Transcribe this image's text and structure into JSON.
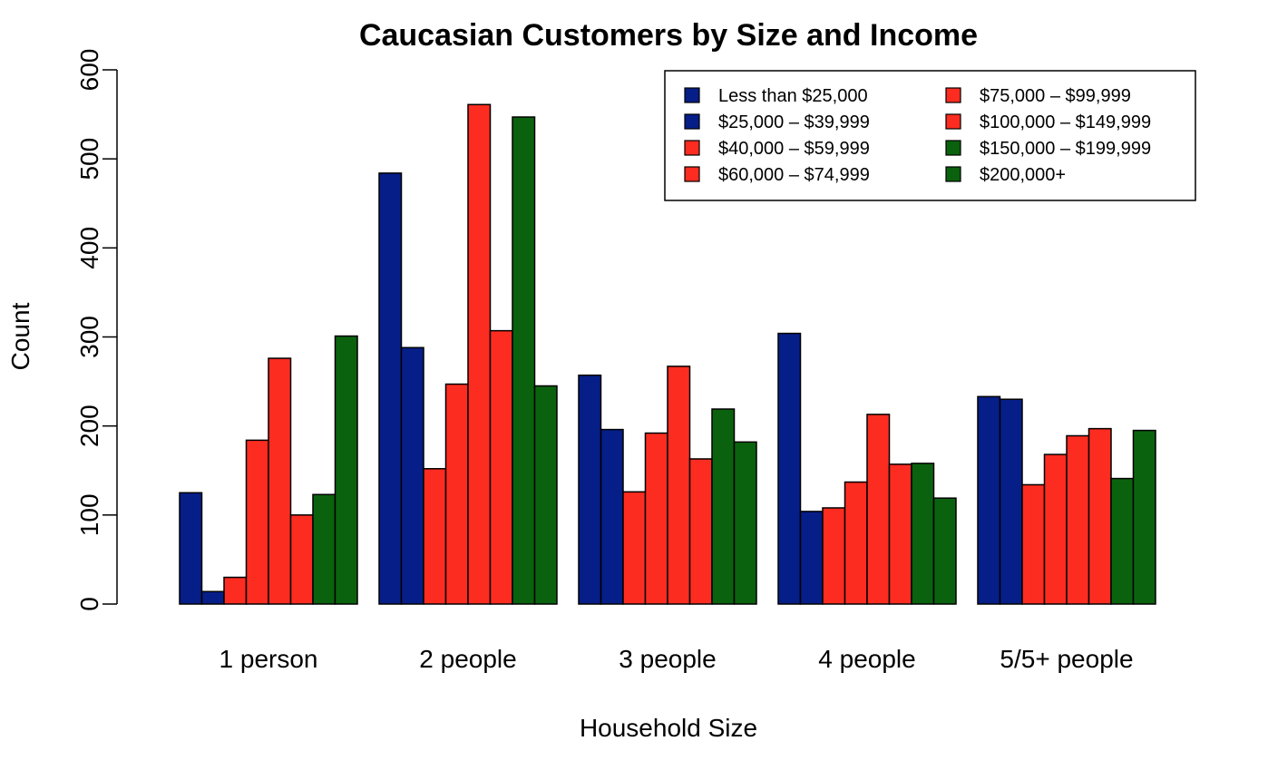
{
  "chart_data": {
    "type": "bar",
    "title": "Caucasian Customers by Size and Income",
    "xlabel": "Household Size",
    "ylabel": "Count",
    "ylim": [
      0,
      600
    ],
    "yticks": [
      "0",
      "100",
      "200",
      "300",
      "400",
      "500",
      "600"
    ],
    "ytick_values": [
      0,
      100,
      200,
      300,
      400,
      500,
      600
    ],
    "categories": [
      "1 person",
      "2 people",
      "3 people",
      "4 people",
      "5/5+ people"
    ],
    "grid": false,
    "legend_position": "top-right",
    "series": [
      {
        "name": "Less than $25,000",
        "color": "#061e87",
        "values": [
          125,
          484,
          257,
          304,
          233
        ]
      },
      {
        "name": "$25,000 – $39,999",
        "color": "#061e87",
        "values": [
          14,
          288,
          196,
          104,
          230
        ]
      },
      {
        "name": "$40,000 – $59,999",
        "color": "#fc2c21",
        "values": [
          30,
          152,
          126,
          108,
          134
        ]
      },
      {
        "name": "$60,000 – $74,999",
        "color": "#fc2c21",
        "values": [
          184,
          247,
          192,
          137,
          168
        ]
      },
      {
        "name": "$75,000 – $99,999",
        "color": "#fc2c21",
        "values": [
          276,
          561,
          267,
          213,
          189
        ]
      },
      {
        "name": "$100,000 – $149,999",
        "color": "#fc2c21",
        "values": [
          100,
          307,
          163,
          157,
          197
        ]
      },
      {
        "name": "$150,000 – $199,999",
        "color": "#0b620e",
        "values": [
          123,
          547,
          219,
          158,
          141
        ]
      },
      {
        "name": "$200,000+",
        "color": "#0b620e",
        "values": [
          301,
          245,
          182,
          119,
          195
        ]
      }
    ]
  }
}
